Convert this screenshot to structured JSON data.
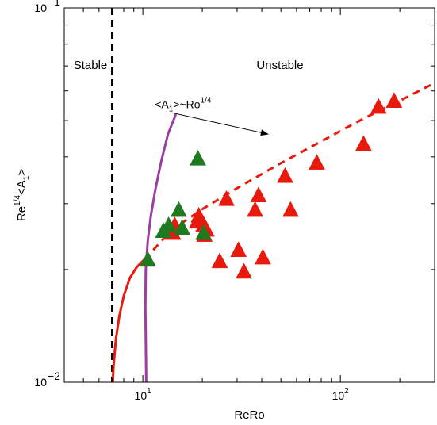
{
  "chart_data": {
    "type": "scatter",
    "xlabel": "ReRo",
    "ylabel_base": "Re",
    "ylabel_exp": "1/4",
    "ylabel_rest": "<A",
    "ylabel_sub": "1",
    "ylabel_close": ">",
    "xscale": "log",
    "yscale": "log",
    "xlim": [
      4,
      300
    ],
    "ylim": [
      0.01,
      0.1
    ],
    "xticks": [
      {
        "value": 10,
        "base": "10",
        "exp": "1"
      },
      {
        "value": 100,
        "base": "10",
        "exp": "2"
      }
    ],
    "yticks": [
      {
        "value": 0.01,
        "base": "10",
        "exp": "−2"
      },
      {
        "value": 0.1,
        "base": "10",
        "exp": "−1"
      }
    ],
    "grid": false,
    "regions": {
      "stable_label": "Stable",
      "unstable_label": "Unstable",
      "boundary_x": 7
    },
    "annotation": {
      "text_a": "<A",
      "text_sub": "1",
      "text_b": ">~Ro",
      "text_exp": "1/4",
      "text_x": 11.5,
      "text_y": 0.054,
      "arrow_to_x": 43,
      "arrow_to_y": 0.046
    },
    "colors": {
      "red": "#e81a0e",
      "green": "#1f7a1f",
      "purple": "#9b3ea3",
      "boundary": "#000000"
    },
    "series": [
      {
        "kind": "triangles",
        "color": "red",
        "points": [
          [
            14.2,
            0.025
          ],
          [
            14.5,
            0.0262
          ],
          [
            18.8,
            0.0268
          ],
          [
            19.2,
            0.0278
          ],
          [
            20.3,
            0.0263
          ],
          [
            21.0,
            0.0255
          ],
          [
            20.5,
            0.0247
          ],
          [
            24.5,
            0.021
          ],
          [
            26.5,
            0.0308
          ],
          [
            30.5,
            0.0225
          ],
          [
            32.5,
            0.0197
          ],
          [
            37.0,
            0.0288
          ],
          [
            38.5,
            0.0315
          ],
          [
            40.5,
            0.0215
          ],
          [
            52.5,
            0.0355
          ],
          [
            56.0,
            0.0288
          ],
          [
            76.0,
            0.0385
          ],
          [
            131.0,
            0.0432
          ],
          [
            156.0,
            0.0543
          ],
          [
            187.0,
            0.0563
          ]
        ]
      },
      {
        "kind": "triangles",
        "color": "green",
        "points": [
          [
            10.6,
            0.0212
          ],
          [
            12.7,
            0.0253
          ],
          [
            13.5,
            0.0262
          ],
          [
            15.2,
            0.0288
          ],
          [
            15.8,
            0.0258
          ],
          [
            19.0,
            0.0395
          ],
          [
            20.3,
            0.025
          ]
        ]
      },
      {
        "kind": "line",
        "style": "solid",
        "color": "red",
        "points": [
          [
            7.05,
            0.01
          ],
          [
            7.1,
            0.011
          ],
          [
            7.3,
            0.013
          ],
          [
            7.6,
            0.015
          ],
          [
            8.0,
            0.017
          ],
          [
            8.6,
            0.019
          ],
          [
            9.3,
            0.0203
          ],
          [
            10.2,
            0.0213
          ]
        ]
      },
      {
        "kind": "line",
        "style": "dashed",
        "color": "red",
        "points": [
          [
            10.2,
            0.0213
          ],
          [
            14.0,
            0.0255
          ],
          [
            20.0,
            0.029
          ],
          [
            30.0,
            0.033
          ],
          [
            50.0,
            0.0385
          ],
          [
            80.0,
            0.044
          ],
          [
            130.0,
            0.0505
          ],
          [
            200.0,
            0.0565
          ],
          [
            300.0,
            0.063
          ]
        ]
      },
      {
        "kind": "line",
        "style": "solid",
        "color": "purple",
        "points": [
          [
            10.4,
            0.01
          ],
          [
            10.35,
            0.013
          ],
          [
            10.3,
            0.016
          ],
          [
            10.35,
            0.02
          ],
          [
            10.6,
            0.024
          ],
          [
            11.0,
            0.028
          ],
          [
            11.6,
            0.033
          ],
          [
            12.4,
            0.039
          ],
          [
            13.4,
            0.046
          ],
          [
            14.7,
            0.052
          ]
        ]
      }
    ]
  }
}
